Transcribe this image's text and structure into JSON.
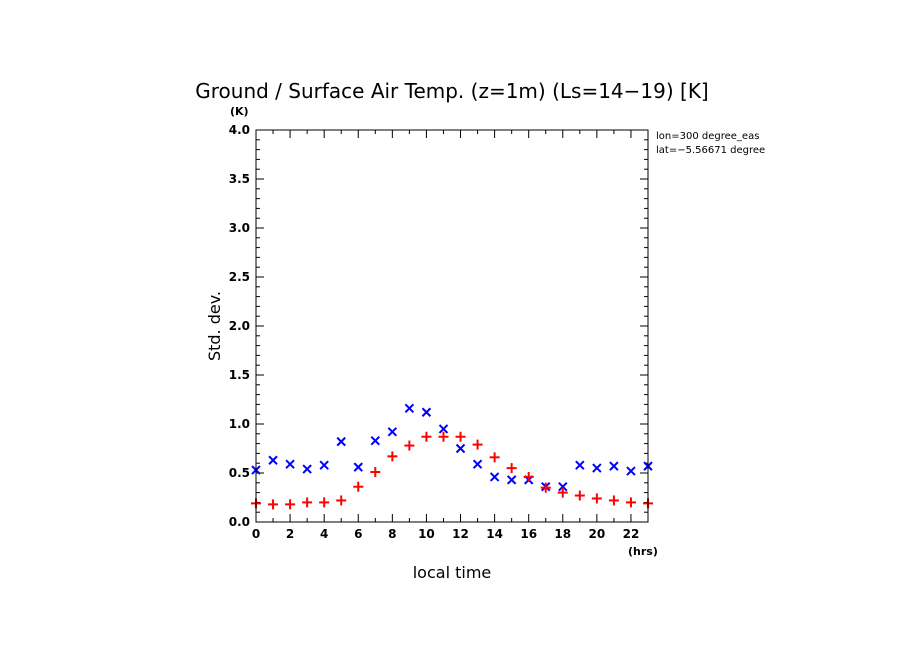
{
  "chart_data": {
    "type": "scatter",
    "title": "Ground / Surface Air Temp. (z=1m) (Ls=14−19) [K]",
    "xlabel": "local time",
    "ylabel": "Std. dev.",
    "x_unit": "(hrs)",
    "y_unit": "(K)",
    "xlim": [
      0,
      23
    ],
    "ylim": [
      0,
      4.0
    ],
    "x_ticks": [
      "0",
      "2",
      "4",
      "6",
      "8",
      "10",
      "12",
      "14",
      "16",
      "18",
      "20",
      "22"
    ],
    "y_ticks": [
      "0.0",
      "0.5",
      "1.0",
      "1.5",
      "2.0",
      "2.5",
      "3.0",
      "3.5",
      "4.0"
    ],
    "annotations": [
      "lon=300 degree_eas",
      "lat=−5.56671 degree"
    ],
    "series": [
      {
        "marker": "x",
        "color": "#0000ff",
        "x": [
          0,
          1,
          2,
          3,
          4,
          5,
          6,
          7,
          8,
          9,
          10,
          11,
          12,
          13,
          14,
          15,
          16,
          17,
          18,
          19,
          20,
          21,
          22,
          23
        ],
        "values": [
          0.53,
          0.63,
          0.59,
          0.54,
          0.58,
          0.82,
          0.56,
          0.83,
          0.92,
          1.16,
          1.12,
          0.95,
          0.75,
          0.59,
          0.46,
          0.43,
          0.43,
          0.36,
          0.36,
          0.58,
          0.55,
          0.57,
          0.52,
          0.57
        ]
      },
      {
        "marker": "+",
        "color": "#ff0000",
        "x": [
          0,
          1,
          2,
          3,
          4,
          5,
          6,
          7,
          8,
          9,
          10,
          11,
          12,
          13,
          14,
          15,
          16,
          17,
          18,
          19,
          20,
          21,
          22,
          23
        ],
        "values": [
          0.19,
          0.18,
          0.18,
          0.2,
          0.2,
          0.22,
          0.36,
          0.51,
          0.67,
          0.78,
          0.87,
          0.87,
          0.87,
          0.79,
          0.66,
          0.55,
          0.46,
          0.35,
          0.3,
          0.27,
          0.24,
          0.22,
          0.2,
          0.19
        ]
      }
    ]
  }
}
